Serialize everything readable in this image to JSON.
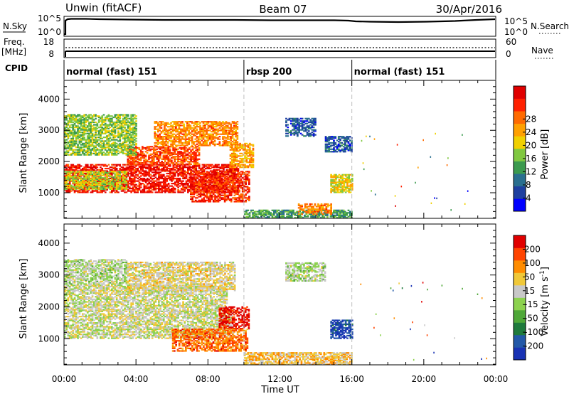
{
  "header": {
    "site": "Unwin (fitACF)",
    "beam": "Beam 07",
    "date": "30/Apr/2016"
  },
  "strips": {
    "nsky_label": "N.Sky",
    "nsky_ticks": [
      "10^5",
      "10^0"
    ],
    "nsearch_label": "N.Search",
    "freq_label": "Freq.",
    "freq_unit": "[MHz]",
    "freq_ticks": [
      "18",
      "8"
    ],
    "nave_label": "Nave",
    "nave_ticks": [
      "60",
      "0"
    ],
    "cpid_label": "CPID",
    "cpid_segments": [
      {
        "start_ut": 0,
        "end_ut": 10,
        "label": "normal (fast) 151"
      },
      {
        "start_ut": 10,
        "end_ut": 16,
        "label": "rbsp 200"
      },
      {
        "start_ut": 16,
        "end_ut": 24,
        "label": "normal (fast) 151"
      }
    ]
  },
  "colors": {
    "power_scale": [
      "#0000ff",
      "#1e3fa0",
      "#2a6f8f",
      "#3b9a4e",
      "#80c840",
      "#f0d000",
      "#ffa000",
      "#ff6a00",
      "#ff2000",
      "#e00000"
    ],
    "velocity_scale": [
      "#1832b4",
      "#2258a8",
      "#1e7a3c",
      "#4fa838",
      "#8cd24e",
      "#c8c8c8",
      "#f0c838",
      "#ff8c00",
      "#ff4400",
      "#e00000"
    ],
    "cpid_boundary": "#c0c0c0"
  },
  "chart_data": [
    {
      "type": "heatmap",
      "title": "",
      "xlabel": "Time UT",
      "ylabel": "Slant Range [km]",
      "xlim": [
        0,
        24
      ],
      "ylim": [
        180,
        4600
      ],
      "x_ticks": [
        "00:00",
        "04:00",
        "08:00",
        "12:00",
        "16:00",
        "20:00",
        "00:00"
      ],
      "y_ticks": [
        "1000",
        "2000",
        "3000",
        "4000"
      ],
      "colorbar": {
        "label": "Power [dB]",
        "ticks": [
          "4",
          "8",
          "12",
          "16",
          "20",
          "24",
          "28"
        ]
      },
      "regions": [
        {
          "t0": 0.0,
          "t1": 9.7,
          "r0": 1000,
          "r1": 1900,
          "level": 8.5
        },
        {
          "t0": 0.0,
          "t1": 3.5,
          "r0": 1100,
          "r1": 1700,
          "level": 4.5
        },
        {
          "t0": 3.5,
          "t1": 7.5,
          "r0": 1900,
          "r1": 2500,
          "level": 7.5
        },
        {
          "t0": 5.0,
          "t1": 9.6,
          "r0": 2500,
          "r1": 3300,
          "level": 6.5
        },
        {
          "t0": 0.0,
          "t1": 4.0,
          "r0": 2200,
          "r1": 3500,
          "level": 4
        },
        {
          "t0": 7.0,
          "t1": 10.3,
          "r0": 700,
          "r1": 1700,
          "level": 8
        },
        {
          "t0": 9.2,
          "t1": 10.5,
          "r0": 1800,
          "r1": 2600,
          "level": 6
        },
        {
          "t0": 12.3,
          "t1": 14.0,
          "r0": 2800,
          "r1": 3400,
          "level": 1.5
        },
        {
          "t0": 14.5,
          "t1": 16.0,
          "r0": 2300,
          "r1": 2800,
          "level": 1.5
        },
        {
          "t0": 14.8,
          "t1": 16.0,
          "r0": 1000,
          "r1": 1600,
          "level": 5
        },
        {
          "t0": 10.0,
          "t1": 16.0,
          "r0": 180,
          "r1": 450,
          "level": 3
        },
        {
          "t0": 13.0,
          "t1": 14.8,
          "r0": 300,
          "r1": 650,
          "level": 6.5
        }
      ]
    },
    {
      "type": "heatmap",
      "title": "",
      "xlabel": "Time UT",
      "ylabel": "Slant Range [km]",
      "xlim": [
        0,
        24
      ],
      "ylim": [
        180,
        4600
      ],
      "x_ticks": [
        "00:00",
        "04:00",
        "08:00",
        "12:00",
        "16:00",
        "20:00",
        "00:00"
      ],
      "y_ticks": [
        "1000",
        "2000",
        "3000",
        "4000"
      ],
      "colorbar": {
        "label": "Velocity [m s^-1]",
        "ticks": [
          "200",
          "100",
          "50",
          "15",
          "-15",
          "-50",
          "-100",
          "-200"
        ]
      },
      "regions": [
        {
          "t0": 0.0,
          "t1": 9.4,
          "r0": 1000,
          "r1": 1900,
          "level": 5
        },
        {
          "t0": 0.0,
          "t1": 9.0,
          "r0": 1900,
          "r1": 2700,
          "level": 5
        },
        {
          "t0": 0.0,
          "t1": 3.5,
          "r0": 2700,
          "r1": 3500,
          "level": 4.5
        },
        {
          "t0": 3.5,
          "t1": 9.5,
          "r0": 2500,
          "r1": 3400,
          "level": 5.5
        },
        {
          "t0": 8.6,
          "t1": 10.3,
          "r0": 1300,
          "r1": 2000,
          "level": 9
        },
        {
          "t0": 6.0,
          "t1": 10.2,
          "r0": 600,
          "r1": 1300,
          "level": 7.5
        },
        {
          "t0": 14.8,
          "t1": 16.0,
          "r0": 1000,
          "r1": 1600,
          "level": 0.5
        },
        {
          "t0": 12.3,
          "t1": 14.5,
          "r0": 2800,
          "r1": 3400,
          "level": 4.5
        },
        {
          "t0": 10.0,
          "t1": 16.0,
          "r0": 180,
          "r1": 550,
          "level": 6
        }
      ]
    }
  ]
}
